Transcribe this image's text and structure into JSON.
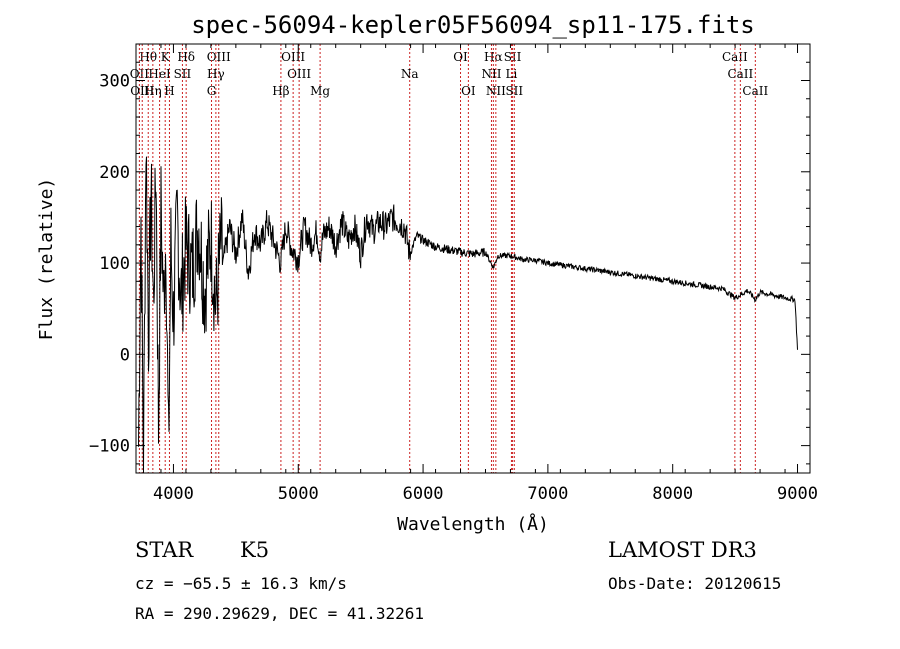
{
  "chart_data": {
    "type": "line",
    "title": "spec-56094-kepler05F56094_sp11-175.fits",
    "xlabel": "Wavelength (Å)",
    "ylabel": "Flux (relative)",
    "xlim": [
      3700,
      9100
    ],
    "ylim": [
      -130,
      340
    ],
    "x_ticks": [
      4000,
      5000,
      6000,
      7000,
      8000,
      9000
    ],
    "y_ticks": [
      -100,
      0,
      100,
      200,
      300
    ],
    "series": [
      {
        "name": "flux",
        "x": [
          3720,
          3740,
          3760,
          3780,
          3800,
          3820,
          3840,
          3860,
          3880,
          3900,
          3920,
          3940,
          3960,
          3980,
          4000,
          4030,
          4060,
          4100,
          4150,
          4200,
          4250,
          4300,
          4340,
          4380,
          4400,
          4450,
          4500,
          4550,
          4600,
          4650,
          4700,
          4750,
          4800,
          4860,
          4900,
          4950,
          5000,
          5050,
          5100,
          5150,
          5175,
          5200,
          5250,
          5300,
          5350,
          5400,
          5450,
          5500,
          5550,
          5600,
          5650,
          5700,
          5750,
          5800,
          5850,
          5893,
          5950,
          6000,
          6100,
          6200,
          6300,
          6400,
          6500,
          6563,
          6600,
          6700,
          6800,
          6900,
          7000,
          7100,
          7200,
          7300,
          7400,
          7500,
          7600,
          7700,
          7800,
          7900,
          8000,
          8100,
          8200,
          8300,
          8400,
          8498,
          8542,
          8600,
          8662,
          8700,
          8800,
          8900,
          8980,
          9000
        ],
        "y": [
          -100,
          150,
          -120,
          240,
          20,
          180,
          50,
          210,
          -80,
          160,
          60,
          130,
          -110,
          120,
          40,
          150,
          60,
          120,
          90,
          145,
          70,
          130,
          50,
          120,
          100,
          140,
          110,
          150,
          90,
          135,
          120,
          145,
          125,
          100,
          140,
          115,
          105,
          140,
          120,
          135,
          110,
          130,
          140,
          120,
          145,
          125,
          140,
          110,
          150,
          135,
          145,
          140,
          150,
          145,
          140,
          110,
          130,
          125,
          118,
          115,
          112,
          110,
          112,
          95,
          108,
          108,
          104,
          103,
          100,
          98,
          96,
          94,
          92,
          90,
          88,
          86,
          84,
          82,
          80,
          78,
          76,
          74,
          72,
          62,
          65,
          70,
          60,
          68,
          65,
          62,
          60,
          5
        ]
      }
    ],
    "spectral_lines": [
      {
        "label": "Hθ",
        "wavelength": 3798,
        "row": 1
      },
      {
        "label": "K",
        "wavelength": 3934,
        "row": 1
      },
      {
        "label": "Hδ",
        "wavelength": 4102,
        "row": 1
      },
      {
        "label": "OIII",
        "wavelength": 4363,
        "row": 1
      },
      {
        "label": "OIII",
        "wavelength": 4959,
        "row": 1
      },
      {
        "label": "OI",
        "wavelength": 6300,
        "row": 1
      },
      {
        "label": "Hα",
        "wavelength": 6563,
        "row": 1
      },
      {
        "label": "SII",
        "wavelength": 6717,
        "row": 1
      },
      {
        "label": "CaII",
        "wavelength": 8498,
        "row": 1
      },
      {
        "label": "OII",
        "wavelength": 3727,
        "row": 2
      },
      {
        "label": "HeI",
        "wavelength": 3889,
        "row": 2
      },
      {
        "label": "SII",
        "wavelength": 4072,
        "row": 2
      },
      {
        "label": "Hγ",
        "wavelength": 4340,
        "row": 2
      },
      {
        "label": "OIII",
        "wavelength": 5007,
        "row": 2
      },
      {
        "label": "Na",
        "wavelength": 5893,
        "row": 2
      },
      {
        "label": "NII",
        "wavelength": 6548,
        "row": 2
      },
      {
        "label": "Li",
        "wavelength": 6708,
        "row": 2
      },
      {
        "label": "CaII",
        "wavelength": 8542,
        "row": 2
      },
      {
        "label": "OIII",
        "wavelength": 3750,
        "row": 3
      },
      {
        "label": "Hη",
        "wavelength": 3835,
        "row": 3
      },
      {
        "label": "H",
        "wavelength": 3968,
        "row": 3
      },
      {
        "label": "G",
        "wavelength": 4305,
        "row": 3
      },
      {
        "label": "Hβ",
        "wavelength": 4861,
        "row": 3
      },
      {
        "label": "Mg",
        "wavelength": 5175,
        "row": 3
      },
      {
        "label": "OI",
        "wavelength": 6363,
        "row": 3
      },
      {
        "label": "NII",
        "wavelength": 6583,
        "row": 3
      },
      {
        "label": "SII",
        "wavelength": 6731,
        "row": 3
      },
      {
        "label": "CaII",
        "wavelength": 8662,
        "row": 3
      }
    ]
  },
  "info": {
    "object_class": "STAR",
    "subclass": "K5",
    "survey": "LAMOST DR3",
    "cz": "cz = −65.5 ± 16.3 km/s",
    "obs_date": "Obs-Date: 20120615",
    "coords": "RA = 290.29629, DEC =  41.32261"
  }
}
